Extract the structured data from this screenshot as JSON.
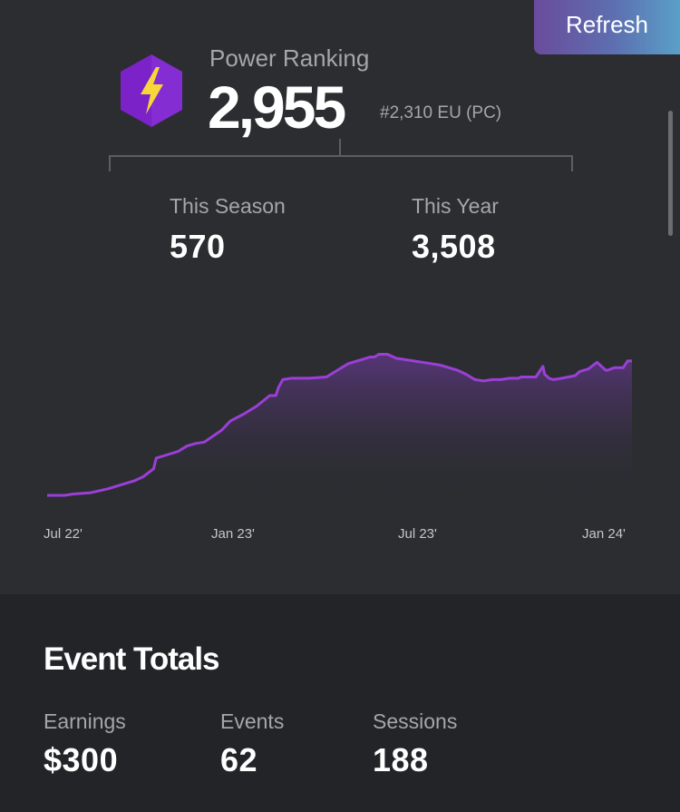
{
  "header": {
    "refresh_label": "Refresh"
  },
  "power_ranking": {
    "label": "Power Ranking",
    "value": "2,955",
    "rank": "#2,310 EU (PC)",
    "badge_icon": "lightning-bolt-hexagon-icon",
    "badge_color": "#7b22c9",
    "bolt_color": "#f5d73a"
  },
  "stats": {
    "season": {
      "label": "This Season",
      "value": "570"
    },
    "year": {
      "label": "This Year",
      "value": "3,508"
    }
  },
  "chart_data": {
    "type": "area",
    "x_tick_labels": [
      "Jul 22'",
      "Jan 23'",
      "Jul 23'",
      "Jan 24'"
    ],
    "line_color": "#9b3fd6",
    "x": [
      0,
      2,
      3,
      5,
      7,
      9,
      10,
      11,
      12.2,
      12.5,
      13.5,
      14,
      15,
      16,
      17,
      18,
      20,
      21,
      22.5,
      24,
      25.5,
      26.2,
      26.5,
      27,
      28,
      30,
      32,
      32.5,
      33,
      34,
      34.5,
      36,
      37,
      37.5,
      38,
      39,
      40,
      41,
      43,
      45,
      47,
      48,
      49,
      50,
      51,
      52,
      53,
      54,
      54.3,
      55,
      56,
      56.8,
      57,
      57.5,
      58,
      59,
      60.5,
      61,
      62,
      63,
      64,
      64.2,
      65,
      66,
      66.5,
      67
    ],
    "values": [
      0,
      0,
      1,
      2,
      5,
      9,
      11,
      14,
      20,
      28,
      30,
      31,
      33,
      37,
      39,
      40,
      49,
      56,
      61,
      67,
      75,
      75,
      81,
      87,
      88,
      88,
      89,
      91,
      93,
      97,
      99,
      102,
      104,
      104,
      106,
      106,
      103,
      102,
      100,
      98,
      94,
      91,
      87,
      86,
      87,
      87,
      88,
      88,
      89,
      89,
      89,
      97,
      91,
      88,
      87,
      88,
      90,
      93,
      95,
      100,
      94,
      94,
      96,
      96,
      101,
      101
    ],
    "ylim": [
      0,
      120
    ],
    "xlim": [
      0,
      67
    ]
  },
  "event_totals": {
    "title": "Event Totals",
    "earnings": {
      "label": "Earnings",
      "value": "$300"
    },
    "events": {
      "label": "Events",
      "value": "62"
    },
    "sessions": {
      "label": "Sessions",
      "value": "188"
    }
  }
}
